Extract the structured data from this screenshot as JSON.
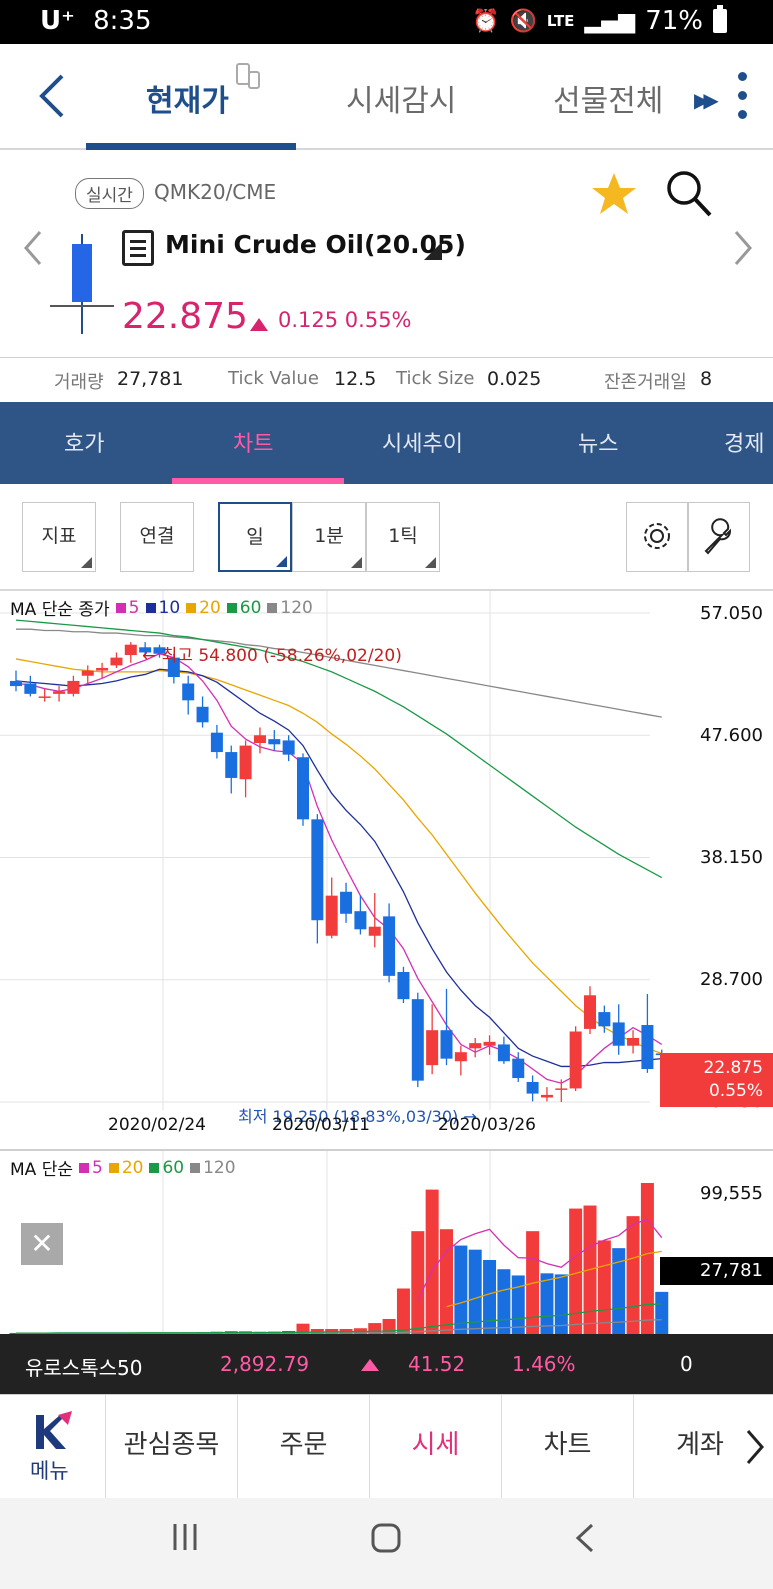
{
  "status_bar": {
    "carrier": "U⁺",
    "time": "8:35",
    "network": "LTE",
    "battery": "71%"
  },
  "top_tabs": [
    "현재가",
    "시세감시",
    "선물전체"
  ],
  "instrument": {
    "realtime_badge": "실시간",
    "code": "QMK20/CME",
    "name": "Mini Crude Oil(20.05)",
    "price": "22.875",
    "change": "0.125 0.55%",
    "favorite": true
  },
  "info": {
    "volume_label": "거래량",
    "volume": "27,781",
    "tick_value_label": "Tick Value",
    "tick_value": "12.5",
    "tick_size_label": "Tick Size",
    "tick_size": "0.025",
    "days_left_label": "잔존거래일",
    "days_left": "8"
  },
  "section_tabs": [
    "호가",
    "차트",
    "시세추이",
    "뉴스",
    "경제"
  ],
  "toolbar": {
    "indicator": "지표",
    "link": "연결",
    "day": "일",
    "minute": "1분",
    "tick": "1틱"
  },
  "price_chart": {
    "legend_title": "MA 단순 종가",
    "ma": [
      {
        "period": "5",
        "color": "#d42fb3"
      },
      {
        "period": "10",
        "color": "#1e2f9c"
      },
      {
        "period": "20",
        "color": "#e8a600"
      },
      {
        "period": "60",
        "color": "#1a9a46"
      },
      {
        "period": "120",
        "color": "#888888"
      }
    ],
    "y_ticks": [
      "57.050",
      "47.600",
      "38.150",
      "28.700",
      "19.250"
    ],
    "x_ticks": [
      "2020/02/24",
      "2020/03/11",
      "2020/03/26"
    ],
    "high_annotation": "← 최고 54.800 (-58.26%,02/20)",
    "low_annotation": "최저 19.250 (18.83%,03/30) →",
    "last_price": "22.875",
    "last_change": "0.55%"
  },
  "volume_chart": {
    "legend_title": "MA 단순",
    "ma": [
      {
        "period": "5",
        "color": "#d42fb3"
      },
      {
        "period": "20",
        "color": "#e8a600"
      },
      {
        "period": "60",
        "color": "#1a9a46"
      },
      {
        "period": "120",
        "color": "#888888"
      }
    ],
    "y_tick": "99,555",
    "last_volume": "27,781"
  },
  "ticker": {
    "name": "유로스톡스50",
    "value": "2,892.79",
    "change": "41.52",
    "percent": "1.46%",
    "extra": "0"
  },
  "bottom_nav": {
    "menu": "메뉴",
    "items": [
      "관심종목",
      "주문",
      "시세",
      "차트",
      "계좌"
    ]
  },
  "chart_data": [
    {
      "type": "candlestick",
      "title": "Mini Crude Oil(20.05)",
      "x_labels": [
        "2020/02/24",
        "2020/03/11",
        "2020/03/26"
      ],
      "ylim": [
        19.25,
        57.05
      ],
      "y_ticks": [
        57.05,
        47.6,
        38.15,
        28.7,
        19.25
      ],
      "candles": [
        {
          "o": 51.8,
          "h": 52.6,
          "l": 51.0,
          "c": 51.4
        },
        {
          "o": 51.6,
          "h": 52.2,
          "l": 50.6,
          "c": 50.8
        },
        {
          "o": 50.6,
          "h": 51.2,
          "l": 50.2,
          "c": 50.6
        },
        {
          "o": 50.8,
          "h": 51.4,
          "l": 50.2,
          "c": 51.0
        },
        {
          "o": 50.8,
          "h": 52.2,
          "l": 50.6,
          "c": 51.8
        },
        {
          "o": 52.2,
          "h": 53.0,
          "l": 51.6,
          "c": 52.6
        },
        {
          "o": 52.6,
          "h": 53.2,
          "l": 52.0,
          "c": 52.8
        },
        {
          "o": 53.0,
          "h": 54.0,
          "l": 52.8,
          "c": 53.6
        },
        {
          "o": 53.8,
          "h": 54.8,
          "l": 53.2,
          "c": 54.6
        },
        {
          "o": 54.4,
          "h": 54.8,
          "l": 53.8,
          "c": 54.0
        },
        {
          "o": 54.4,
          "h": 54.6,
          "l": 53.6,
          "c": 53.9
        },
        {
          "o": 53.6,
          "h": 53.9,
          "l": 51.6,
          "c": 52.1
        },
        {
          "o": 51.6,
          "h": 52.2,
          "l": 49.2,
          "c": 50.3
        },
        {
          "o": 49.8,
          "h": 50.6,
          "l": 48.2,
          "c": 48.6
        },
        {
          "o": 47.8,
          "h": 48.4,
          "l": 45.8,
          "c": 46.3
        },
        {
          "o": 46.3,
          "h": 46.8,
          "l": 43.1,
          "c": 44.3
        },
        {
          "o": 44.2,
          "h": 47.2,
          "l": 42.8,
          "c": 46.8
        },
        {
          "o": 47.0,
          "h": 48.2,
          "l": 46.2,
          "c": 47.6
        },
        {
          "o": 47.3,
          "h": 48.0,
          "l": 46.4,
          "c": 46.9
        },
        {
          "o": 47.2,
          "h": 47.6,
          "l": 45.6,
          "c": 46.1
        },
        {
          "o": 45.9,
          "h": 46.2,
          "l": 40.6,
          "c": 41.1
        },
        {
          "o": 41.1,
          "h": 41.5,
          "l": 31.5,
          "c": 33.3
        },
        {
          "o": 32.1,
          "h": 36.6,
          "l": 31.9,
          "c": 35.2
        },
        {
          "o": 35.5,
          "h": 36.2,
          "l": 33.1,
          "c": 33.8
        },
        {
          "o": 34.0,
          "h": 35.2,
          "l": 32.2,
          "c": 32.6
        },
        {
          "o": 32.1,
          "h": 35.4,
          "l": 31.2,
          "c": 32.8
        },
        {
          "o": 33.6,
          "h": 34.6,
          "l": 28.5,
          "c": 29.0
        },
        {
          "o": 29.3,
          "h": 29.7,
          "l": 26.9,
          "c": 27.2
        },
        {
          "o": 27.2,
          "h": 27.7,
          "l": 20.4,
          "c": 20.9
        },
        {
          "o": 22.1,
          "h": 26.8,
          "l": 21.4,
          "c": 24.8
        },
        {
          "o": 24.8,
          "h": 28.0,
          "l": 22.1,
          "c": 22.6
        },
        {
          "o": 22.4,
          "h": 23.6,
          "l": 21.3,
          "c": 23.1
        },
        {
          "o": 23.4,
          "h": 24.2,
          "l": 22.7,
          "c": 23.8
        },
        {
          "o": 23.6,
          "h": 24.4,
          "l": 22.9,
          "c": 23.9
        },
        {
          "o": 23.7,
          "h": 24.3,
          "l": 22.2,
          "c": 22.4
        },
        {
          "o": 22.6,
          "h": 23.1,
          "l": 20.8,
          "c": 21.1
        },
        {
          "o": 20.8,
          "h": 21.3,
          "l": 19.3,
          "c": 19.9
        },
        {
          "o": 19.6,
          "h": 20.4,
          "l": 19.3,
          "c": 19.8
        },
        {
          "o": 20.2,
          "h": 21.0,
          "l": 19.25,
          "c": 20.3
        },
        {
          "o": 20.3,
          "h": 25.1,
          "l": 20.1,
          "c": 24.7
        },
        {
          "o": 24.9,
          "h": 28.2,
          "l": 24.5,
          "c": 27.5
        },
        {
          "o": 26.2,
          "h": 26.7,
          "l": 24.6,
          "c": 25.1
        },
        {
          "o": 25.4,
          "h": 26.8,
          "l": 22.9,
          "c": 23.6
        },
        {
          "o": 23.6,
          "h": 24.8,
          "l": 23.0,
          "c": 24.2
        },
        {
          "o": 25.2,
          "h": 27.6,
          "l": 21.5,
          "c": 21.8
        },
        {
          "o": 23.0,
          "h": 23.3,
          "l": 21.2,
          "c": 22.875
        }
      ],
      "moving_averages": {
        "5": [
          51.6,
          51.5,
          51.2,
          51.0,
          51.2,
          51.6,
          52.0,
          52.5,
          53.0,
          53.4,
          53.9,
          53.6,
          52.9,
          51.8,
          50.3,
          48.3,
          47.3,
          46.7,
          46.4,
          46.3,
          45.4,
          42.1,
          39.5,
          37.3,
          35.2,
          33.5,
          32.6,
          31.1,
          28.8,
          27.0,
          25.2,
          23.7,
          23.1,
          23.6,
          23.2,
          22.6,
          21.8,
          21.0,
          20.7,
          21.3,
          22.4,
          23.4,
          24.2,
          25.0,
          24.4,
          23.7
        ],
        "10": [
          51.8,
          51.7,
          51.6,
          51.5,
          51.4,
          51.5,
          51.6,
          51.8,
          52.1,
          52.3,
          52.7,
          52.6,
          52.5,
          52.2,
          51.7,
          50.9,
          50.1,
          49.3,
          48.7,
          48.0,
          46.8,
          44.9,
          43.1,
          41.8,
          40.7,
          39.4,
          37.5,
          35.5,
          33.1,
          31.1,
          29.3,
          27.9,
          26.7,
          25.8,
          24.6,
          23.4,
          22.8,
          22.4,
          22.0,
          22.0,
          22.1,
          22.3,
          22.3,
          22.4,
          22.5,
          22.6
        ],
        "20": [
          53.5,
          53.3,
          53.1,
          52.9,
          52.7,
          52.6,
          52.5,
          52.5,
          52.5,
          52.5,
          52.6,
          52.5,
          52.4,
          52.2,
          51.9,
          51.5,
          51.1,
          50.7,
          50.3,
          49.9,
          49.3,
          48.6,
          47.7,
          46.9,
          46.0,
          45.0,
          43.8,
          42.6,
          41.2,
          39.9,
          38.4,
          36.9,
          35.4,
          34.0,
          32.6,
          31.3,
          30.0,
          28.9,
          27.8,
          26.7,
          25.8,
          25.0,
          24.4,
          23.9,
          23.4,
          23.0
        ],
        "60": [
          56.5,
          56.4,
          56.3,
          56.2,
          56.1,
          56.0,
          55.9,
          55.8,
          55.7,
          55.6,
          55.5,
          55.3,
          55.2,
          55.0,
          54.8,
          54.6,
          54.4,
          54.2,
          53.9,
          53.6,
          53.3,
          52.9,
          52.5,
          52.0,
          51.5,
          51.0,
          50.4,
          49.8,
          49.1,
          48.4,
          47.7,
          46.9,
          46.1,
          45.3,
          44.5,
          43.7,
          42.9,
          42.1,
          41.3,
          40.5,
          39.8,
          39.1,
          38.4,
          37.8,
          37.2,
          36.6
        ],
        "120": [
          55.8,
          55.8,
          55.7,
          55.7,
          55.6,
          55.6,
          55.5,
          55.5,
          55.4,
          55.3,
          55.3,
          55.2,
          55.1,
          55.0,
          54.9,
          54.8,
          54.6,
          54.5,
          54.3,
          54.2,
          54.0,
          53.8,
          53.6,
          53.4,
          53.2,
          53.0,
          52.8,
          52.6,
          52.4,
          52.2,
          52.0,
          51.8,
          51.6,
          51.4,
          51.2,
          51.0,
          50.8,
          50.6,
          50.4,
          50.2,
          50.0,
          49.8,
          49.6,
          49.4,
          49.2,
          49.0
        ]
      }
    },
    {
      "type": "bar",
      "title": "Volume",
      "ylim": [
        0,
        99555
      ],
      "y_ticks": [
        99555
      ],
      "bars": [
        {
          "v": 700,
          "up": false
        },
        {
          "v": 700,
          "up": false
        },
        {
          "v": 700,
          "up": false
        },
        {
          "v": 700,
          "up": true
        },
        {
          "v": 800,
          "up": true
        },
        {
          "v": 800,
          "up": true
        },
        {
          "v": 800,
          "up": true
        },
        {
          "v": 900,
          "up": true
        },
        {
          "v": 900,
          "up": true
        },
        {
          "v": 900,
          "up": false
        },
        {
          "v": 900,
          "up": false
        },
        {
          "v": 1000,
          "up": false
        },
        {
          "v": 1100,
          "up": false
        },
        {
          "v": 1200,
          "up": false
        },
        {
          "v": 1500,
          "up": false
        },
        {
          "v": 1900,
          "up": true
        },
        {
          "v": 1800,
          "up": true
        },
        {
          "v": 1500,
          "up": true
        },
        {
          "v": 1600,
          "up": true
        },
        {
          "v": 2000,
          "up": false
        },
        {
          "v": 6800,
          "up": true
        },
        {
          "v": 3300,
          "up": true
        },
        {
          "v": 3300,
          "up": true
        },
        {
          "v": 3300,
          "up": true
        },
        {
          "v": 3800,
          "up": true
        },
        {
          "v": 7200,
          "up": true
        },
        {
          "v": 9900,
          "up": true
        },
        {
          "v": 30000,
          "up": true
        },
        {
          "v": 67800,
          "up": true
        },
        {
          "v": 95200,
          "up": true
        },
        {
          "v": 69100,
          "up": true
        },
        {
          "v": 58300,
          "up": false
        },
        {
          "v": 55600,
          "up": false
        },
        {
          "v": 48800,
          "up": false
        },
        {
          "v": 42700,
          "up": false
        },
        {
          "v": 38600,
          "up": false
        },
        {
          "v": 67800,
          "up": true
        },
        {
          "v": 40000,
          "up": false
        },
        {
          "v": 39300,
          "up": false
        },
        {
          "v": 82700,
          "up": true
        },
        {
          "v": 84700,
          "up": true
        },
        {
          "v": 61700,
          "up": true
        },
        {
          "v": 56600,
          "up": false
        },
        {
          "v": 77700,
          "up": true
        },
        {
          "v": 99555,
          "up": true
        },
        {
          "v": 27781,
          "up": false
        }
      ],
      "moving_averages": {
        "5": [
          null,
          null,
          null,
          null,
          null,
          null,
          null,
          null,
          null,
          null,
          null,
          null,
          null,
          null,
          null,
          null,
          null,
          null,
          null,
          null,
          null,
          null,
          null,
          null,
          null,
          null,
          null,
          null,
          22000,
          42000,
          54400,
          62300,
          66100,
          69000,
          58600,
          50300,
          50000,
          46400,
          44000,
          51400,
          57600,
          61900,
          64900,
          72400,
          75500,
          63500
        ],
        "20": [
          null,
          null,
          null,
          null,
          null,
          null,
          null,
          null,
          null,
          null,
          null,
          null,
          null,
          null,
          null,
          null,
          null,
          null,
          null,
          null,
          null,
          null,
          null,
          null,
          null,
          null,
          null,
          null,
          null,
          null,
          18000,
          20500,
          23500,
          26500,
          29000,
          31000,
          33500,
          35500,
          37500,
          40000,
          42500,
          45000,
          47500,
          50000,
          53000,
          54500
        ],
        "60": [
          600,
          600,
          600,
          700,
          700,
          700,
          700,
          700,
          700,
          800,
          800,
          800,
          800,
          800,
          900,
          900,
          900,
          900,
          1000,
          1000,
          1200,
          1300,
          1400,
          1500,
          1600,
          1800,
          2000,
          2600,
          3600,
          4900,
          6000,
          7000,
          7900,
          8700,
          9400,
          10000,
          11000,
          11700,
          12300,
          13600,
          14900,
          15900,
          16800,
          18000,
          19500,
          19800
        ],
        "120": [
          400,
          400,
          400,
          400,
          400,
          400,
          400,
          400,
          400,
          400,
          400,
          400,
          400,
          400,
          500,
          500,
          500,
          500,
          500,
          500,
          600,
          600,
          600,
          700,
          700,
          800,
          800,
          1000,
          1500,
          2100,
          2600,
          3100,
          3500,
          3900,
          4200,
          4500,
          5000,
          5300,
          5600,
          6300,
          6900,
          7400,
          7800,
          8400,
          9200,
          9400
        ]
      }
    }
  ]
}
